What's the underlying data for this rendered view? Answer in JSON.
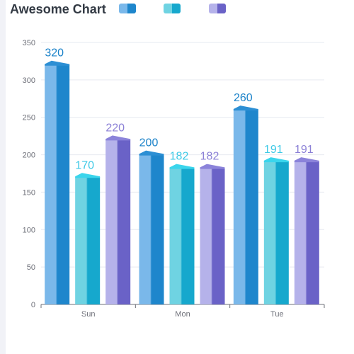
{
  "title": "Awesome Chart",
  "colors": {
    "series_front": [
      "#7ab8ea",
      "#6fd3e2",
      "#b5b2ea"
    ],
    "series_main": [
      "#1e86cc",
      "#16a8cd",
      "#6a62c7"
    ],
    "series_side": [
      "#1c7fc4",
      "#1a9ec3",
      "#5f58b9"
    ],
    "series_top": [
      "#2c8fd4",
      "#3ad5ec",
      "#8b83da"
    ],
    "series_label": [
      "#1a82c9",
      "#3ec9e6",
      "#8b80d6"
    ],
    "axis": "#6e7079",
    "grid": "#e6e9f0"
  },
  "chart_data": {
    "type": "bar",
    "title": "Awesome Chart",
    "categories": [
      "Sun",
      "Mon",
      "Tue"
    ],
    "series": [
      {
        "values": [
          320,
          200,
          260
        ]
      },
      {
        "values": [
          170,
          182,
          191
        ]
      },
      {
        "values": [
          220,
          182,
          191
        ]
      }
    ],
    "ylim": [
      0,
      350
    ],
    "yticks": [
      0,
      50,
      100,
      150,
      200,
      250,
      300,
      350
    ],
    "grid": true,
    "legend": "top"
  }
}
